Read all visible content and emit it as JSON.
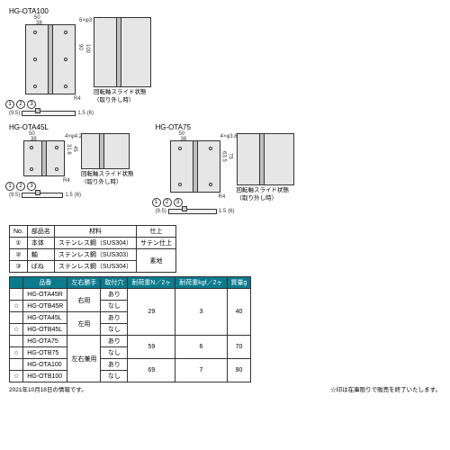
{
  "products": {
    "ota100": {
      "name": "HG-OTA100",
      "dims": {
        "w": "50",
        "w2": "38",
        "h": "100",
        "h2": "90",
        "r": "R4",
        "holes": "6×φ3.8穴"
      }
    },
    "ota45l": {
      "name": "HG-OTA45L",
      "dims": {
        "w": "50",
        "w2": "38",
        "h": "45",
        "h2": "31.8",
        "r": "R4",
        "holes": "4×φ4.2穴"
      }
    },
    "ota75": {
      "name": "HG-OTA75",
      "dims": {
        "w": "50",
        "w2": "38",
        "h": "75",
        "h2": "63.5",
        "r": "R4",
        "holes": "4×φ3.8穴"
      }
    }
  },
  "slide_label_a": "回転軸スライド状態",
  "slide_label_b": "（取り外し時）",
  "side": {
    "a": "(9.5)",
    "t": "1.5",
    "b": "(6)"
  },
  "mat_table": {
    "headers": [
      "No.",
      "部品名",
      "材料",
      "仕上"
    ],
    "rows": [
      [
        "①",
        "本体",
        "ステンレス鋼（SUS304）",
        "サテン仕上"
      ],
      [
        "②",
        "軸",
        "ステンレス鋼（SUS303）",
        "素地"
      ],
      [
        "③",
        "ばね",
        "ステンレス鋼（SUS304）",
        ""
      ]
    ]
  },
  "spec_table": {
    "headers": [
      "",
      "品番",
      "左右勝手",
      "取付穴",
      "耐荷重N／2ヶ",
      "耐荷重kgf／2ヶ",
      "質量g"
    ],
    "rows": [
      {
        "star": "",
        "pn": "HG-OTA45R",
        "hand": "右用",
        "hole": "あり",
        "n": "29",
        "kgf": "3",
        "g": "40"
      },
      {
        "star": "☆",
        "pn": "HG-OTB45R",
        "hand": "",
        "hole": "なし",
        "n": "",
        "kgf": "",
        "g": ""
      },
      {
        "star": "",
        "pn": "HG-OTA45L",
        "hand": "左用",
        "hole": "あり",
        "n": "",
        "kgf": "",
        "g": ""
      },
      {
        "star": "☆",
        "pn": "HG-OTB45L",
        "hand": "",
        "hole": "なし",
        "n": "",
        "kgf": "",
        "g": ""
      },
      {
        "star": "",
        "pn": "HG-OTA75",
        "hand": "左右兼用",
        "hole": "あり",
        "n": "59",
        "kgf": "6",
        "g": "70"
      },
      {
        "star": "☆",
        "pn": "HG-OTB75",
        "hand": "",
        "hole": "なし",
        "n": "",
        "kgf": "",
        "g": ""
      },
      {
        "star": "",
        "pn": "HG-OTA100",
        "hand": "",
        "hole": "あり",
        "n": "69",
        "kgf": "7",
        "g": "90"
      },
      {
        "star": "☆",
        "pn": "HG-OTB100",
        "hand": "",
        "hole": "なし",
        "n": "",
        "kgf": "",
        "g": ""
      }
    ]
  },
  "footnote_date": "2021年10月18日の情報です。",
  "footnote_star": "☆印は在庫限りで販売を終了いたします。"
}
